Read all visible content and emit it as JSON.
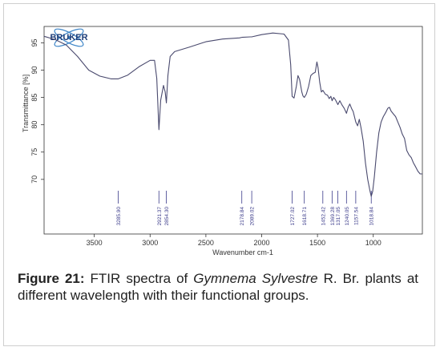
{
  "chart_data": {
    "type": "line",
    "xlabel": "Wavenumber cm-1",
    "ylabel": "Transmittance [%]",
    "x_reversed": true,
    "xlim": [
      3950,
      560
    ],
    "ylim": [
      60,
      98
    ],
    "x_ticks": [
      3500,
      3000,
      2500,
      2000,
      1500,
      1000
    ],
    "y_ticks": [
      70,
      75,
      80,
      85,
      90,
      95
    ],
    "grid": false,
    "logo_text": "BRUKER",
    "line_color": "#4a4a6e",
    "peak_color": "#3b3b8a",
    "series": [
      {
        "points": [
          [
            3950,
            96.2
          ],
          [
            3850,
            95.6
          ],
          [
            3750,
            94.6
          ],
          [
            3650,
            92.5
          ],
          [
            3550,
            90.0
          ],
          [
            3450,
            88.9
          ],
          [
            3350,
            88.4
          ],
          [
            3285,
            88.4
          ],
          [
            3200,
            89.1
          ],
          [
            3100,
            90.6
          ],
          [
            3000,
            91.8
          ],
          [
            2960,
            91.8
          ],
          [
            2940,
            88.5
          ],
          [
            2921,
            79.1
          ],
          [
            2905,
            84.5
          ],
          [
            2880,
            87.2
          ],
          [
            2865,
            86.0
          ],
          [
            2854,
            84.0
          ],
          [
            2840,
            89.0
          ],
          [
            2820,
            92.5
          ],
          [
            2780,
            93.4
          ],
          [
            2650,
            94.2
          ],
          [
            2500,
            95.2
          ],
          [
            2350,
            95.7
          ],
          [
            2200,
            95.9
          ],
          [
            2178,
            96.0
          ],
          [
            2100,
            96.1
          ],
          [
            2089,
            96.1
          ],
          [
            2000,
            96.5
          ],
          [
            1900,
            96.8
          ],
          [
            1800,
            96.6
          ],
          [
            1760,
            95.5
          ],
          [
            1740,
            91.0
          ],
          [
            1727,
            85.2
          ],
          [
            1710,
            84.9
          ],
          [
            1690,
            87.0
          ],
          [
            1675,
            89.0
          ],
          [
            1660,
            88.3
          ],
          [
            1640,
            86.0
          ],
          [
            1630,
            85.3
          ],
          [
            1618,
            85.0
          ],
          [
            1600,
            85.6
          ],
          [
            1580,
            87.0
          ],
          [
            1560,
            89.0
          ],
          [
            1540,
            89.4
          ],
          [
            1520,
            89.6
          ],
          [
            1505,
            91.5
          ],
          [
            1495,
            90.5
          ],
          [
            1480,
            87.8
          ],
          [
            1465,
            86.0
          ],
          [
            1452,
            86.3
          ],
          [
            1430,
            85.6
          ],
          [
            1410,
            85.4
          ],
          [
            1395,
            84.8
          ],
          [
            1380,
            85.2
          ],
          [
            1369,
            84.4
          ],
          [
            1355,
            85.0
          ],
          [
            1340,
            84.6
          ],
          [
            1317,
            83.7
          ],
          [
            1300,
            84.4
          ],
          [
            1280,
            83.6
          ],
          [
            1260,
            83.0
          ],
          [
            1240,
            82.1
          ],
          [
            1225,
            83.2
          ],
          [
            1210,
            83.8
          ],
          [
            1195,
            83.0
          ],
          [
            1180,
            82.4
          ],
          [
            1157,
            80.5
          ],
          [
            1140,
            79.8
          ],
          [
            1125,
            81.0
          ],
          [
            1110,
            79.5
          ],
          [
            1090,
            77.0
          ],
          [
            1070,
            73.0
          ],
          [
            1050,
            70.0
          ],
          [
            1030,
            67.9
          ],
          [
            1018,
            66.9
          ],
          [
            1005,
            67.8
          ],
          [
            990,
            70.5
          ],
          [
            970,
            75.0
          ],
          [
            950,
            78.5
          ],
          [
            930,
            80.5
          ],
          [
            910,
            81.5
          ],
          [
            890,
            82.2
          ],
          [
            870,
            83.0
          ],
          [
            855,
            83.2
          ],
          [
            840,
            82.5
          ],
          [
            820,
            82.0
          ],
          [
            800,
            81.5
          ],
          [
            780,
            80.5
          ],
          [
            760,
            79.5
          ],
          [
            740,
            78.3
          ],
          [
            720,
            77.5
          ],
          [
            700,
            75.3
          ],
          [
            680,
            74.5
          ],
          [
            660,
            74.0
          ],
          [
            640,
            73.0
          ],
          [
            620,
            72.3
          ],
          [
            600,
            71.5
          ],
          [
            580,
            71.0
          ],
          [
            560,
            71.0
          ]
        ]
      }
    ],
    "peaks": [
      {
        "x": 3285,
        "label": "3285.90"
      },
      {
        "x": 2921,
        "label": "2921.37"
      },
      {
        "x": 2854,
        "label": "2854.30"
      },
      {
        "x": 2178,
        "label": "2178.84"
      },
      {
        "x": 2089,
        "label": "2089.02"
      },
      {
        "x": 1727,
        "label": "1727.02"
      },
      {
        "x": 1618,
        "label": "1618.71"
      },
      {
        "x": 1452,
        "label": "1452.42"
      },
      {
        "x": 1369,
        "label": "1369.28"
      },
      {
        "x": 1317,
        "label": "1317.05"
      },
      {
        "x": 1240,
        "label": "1240.05"
      },
      {
        "x": 1157,
        "label": "1157.54"
      },
      {
        "x": 1018,
        "label": "1018.84"
      }
    ]
  },
  "caption": {
    "label": "Figure 21:",
    "text_a": " FTIR spectra of ",
    "species": "Gymnema Sylvestre",
    "text_b": " R. Br. plants at different wavelength with their functional groups."
  }
}
